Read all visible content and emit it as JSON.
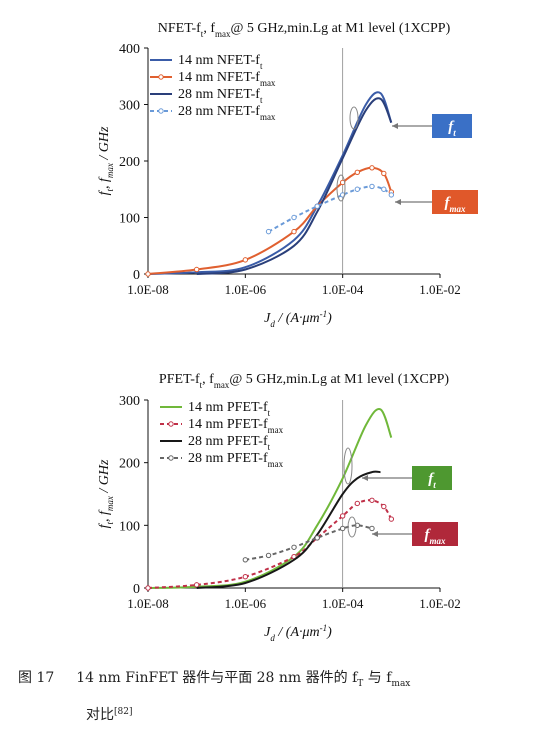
{
  "figure": {
    "caption": {
      "number": "图 17",
      "line1": "14 nm FinFET 器件与平面 28 nm 器件的 f",
      "sub_t": "T",
      "mid": " 与 f",
      "sub_max": "max",
      "line2": "对比",
      "ref": "[82]"
    }
  },
  "chart_data": [
    {
      "type": "line",
      "title": "NFET-f_t, f_max@ 5 GHz,min.Lg at M1 level (1XCPP)",
      "xlabel": "J_d / (A·μm^-1)",
      "ylabel": "f_t, f_max / GHz",
      "x_scale": "log",
      "x_ticks": [
        "1.0E-08",
        "1.0E-06",
        "1.0E-04",
        "1.0E-02"
      ],
      "xlim": [
        1e-08,
        0.01
      ],
      "ylim": [
        0,
        400
      ],
      "y_ticks": [
        0,
        100,
        200,
        300,
        400
      ],
      "grid": "vertical line at 1.0E-04 only",
      "legend_position": "top-left",
      "series": [
        {
          "name": "14 nm NFET-f_t",
          "color": "#3a5ca8",
          "style": "solid",
          "x": [
            1e-08,
            1e-07,
            1e-06,
            1e-05,
            3e-05,
            0.0001,
            0.0003,
            0.0006,
            0.001
          ],
          "y": [
            0,
            3,
            12,
            60,
            120,
            210,
            300,
            320,
            268
          ]
        },
        {
          "name": "14 nm NFET-f_max",
          "color": "#e06030",
          "style": "solid-markers",
          "x": [
            1e-08,
            1e-07,
            1e-06,
            1e-05,
            3e-05,
            0.0001,
            0.0002,
            0.0004,
            0.0007,
            0.001
          ],
          "y": [
            0,
            8,
            25,
            75,
            120,
            162,
            180,
            188,
            178,
            145
          ]
        },
        {
          "name": "28 nm NFET-f_t",
          "color": "#2a3f7a",
          "style": "solid",
          "x": [
            1e-07,
            1e-06,
            1e-05,
            3e-05,
            0.0001,
            0.0003,
            0.0006,
            0.001
          ],
          "y": [
            0,
            8,
            50,
            110,
            205,
            290,
            310,
            268
          ]
        },
        {
          "name": "28 nm NFET-f_max",
          "color": "#6a9ad8",
          "style": "dashed-markers",
          "x": [
            3e-06,
            1e-05,
            3e-05,
            0.0001,
            0.0002,
            0.0004,
            0.0007,
            0.001
          ],
          "y": [
            75,
            100,
            120,
            140,
            150,
            155,
            150,
            140
          ]
        }
      ],
      "annotations": [
        {
          "text": "f_t",
          "box_color": "#3a70c6"
        },
        {
          "text": "f_max",
          "box_color": "#e0582a"
        }
      ]
    },
    {
      "type": "line",
      "title": "PFET-f_t, f_max@ 5 GHz,min.Lg at M1 level (1XCPP)",
      "xlabel": "J_d / (A·μm^-1)",
      "ylabel": "f_t, f_max / GHz",
      "x_scale": "log",
      "x_ticks": [
        "1.0E-08",
        "1.0E-06",
        "1.0E-04",
        "1.0E-02"
      ],
      "xlim": [
        1e-08,
        0.01
      ],
      "ylim": [
        0,
        300
      ],
      "y_ticks": [
        0,
        100,
        200,
        300
      ],
      "grid": "vertical line at 1.0E-04 only",
      "legend_position": "top-left",
      "series": [
        {
          "name": "14 nm PFET-f_t",
          "color": "#70b83a",
          "style": "solid",
          "x": [
            1e-08,
            1e-07,
            1e-06,
            1e-05,
            3e-05,
            0.0001,
            0.0003,
            0.0006,
            0.001
          ],
          "y": [
            0,
            2,
            10,
            50,
            100,
            175,
            260,
            285,
            240
          ]
        },
        {
          "name": "14 nm PFET-f_max",
          "color": "#c03048",
          "style": "dashed-markers",
          "x": [
            1e-08,
            1e-07,
            1e-06,
            1e-05,
            3e-05,
            0.0001,
            0.0002,
            0.0004,
            0.0007,
            0.001
          ],
          "y": [
            0,
            5,
            18,
            50,
            80,
            115,
            135,
            140,
            130,
            110
          ]
        },
        {
          "name": "28 nm PFET-f_t",
          "color": "#181818",
          "style": "solid",
          "x": [
            1e-07,
            1e-06,
            1e-05,
            3e-05,
            0.0001,
            0.0002,
            0.0004,
            0.0006
          ],
          "y": [
            0,
            8,
            45,
            85,
            150,
            175,
            185,
            185
          ]
        },
        {
          "name": "28 nm PFET-f_max",
          "color": "#666666",
          "style": "dashed-markers",
          "x": [
            1e-06,
            3e-06,
            1e-05,
            3e-05,
            0.0001,
            0.0002,
            0.0004
          ],
          "y": [
            45,
            52,
            65,
            80,
            95,
            100,
            95
          ]
        }
      ],
      "annotations": [
        {
          "text": "f_t",
          "box_color": "#4e9830"
        },
        {
          "text": "f_max",
          "box_color": "#b0283a"
        }
      ]
    }
  ],
  "colors": {
    "axis": "#111111",
    "grid": "#888888",
    "accent_blue": "#3a70c6",
    "accent_orange": "#e0582a",
    "accent_green": "#4e9830",
    "accent_red": "#b0283a"
  }
}
